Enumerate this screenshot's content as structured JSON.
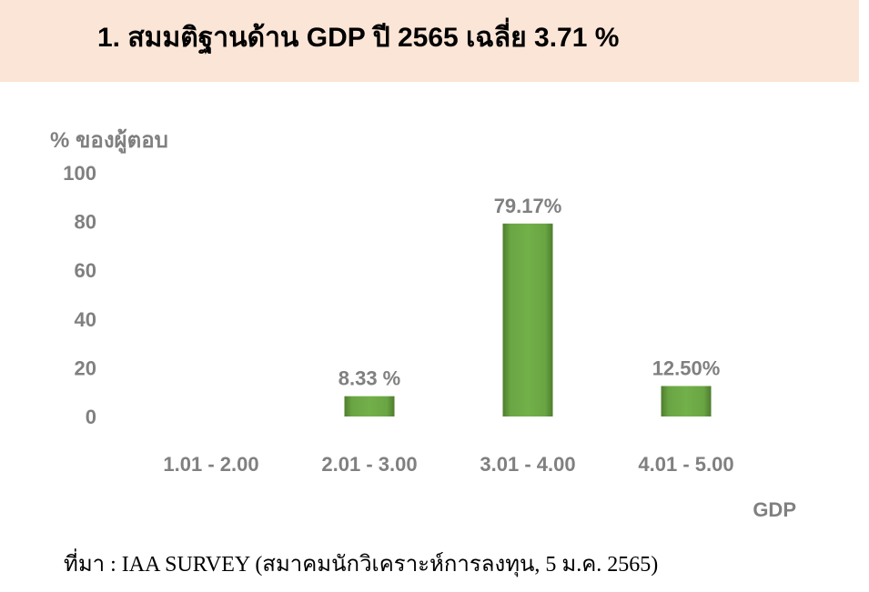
{
  "header": {
    "title": "1. สมมติฐานด้าน GDP ปี 2565 เฉลี่ย 3.71 %"
  },
  "chart_data": {
    "type": "bar",
    "ylabel": "% ของผู้ตอบ",
    "xlabel": "GDP",
    "ylim": [
      0,
      100
    ],
    "yticks": [
      "100",
      "80",
      "60",
      "40",
      "20",
      "0"
    ],
    "categories": [
      "1.01 - 2.00",
      "2.01 - 3.00",
      "3.01 - 4.00",
      "4.01 - 5.00"
    ],
    "values": [
      0,
      8.33,
      79.17,
      12.5
    ],
    "data_labels": [
      "",
      "8.33 %",
      "79.17%",
      "12.50%"
    ],
    "grid": false,
    "legend": "none",
    "bar_color": "#70ad47",
    "text_color": "#808080"
  },
  "footer": {
    "source": "ที่มา : IAA SURVEY (สมาคมนักวิเคราะห์การลงทุน, 5 ม.ค. 2565)"
  }
}
